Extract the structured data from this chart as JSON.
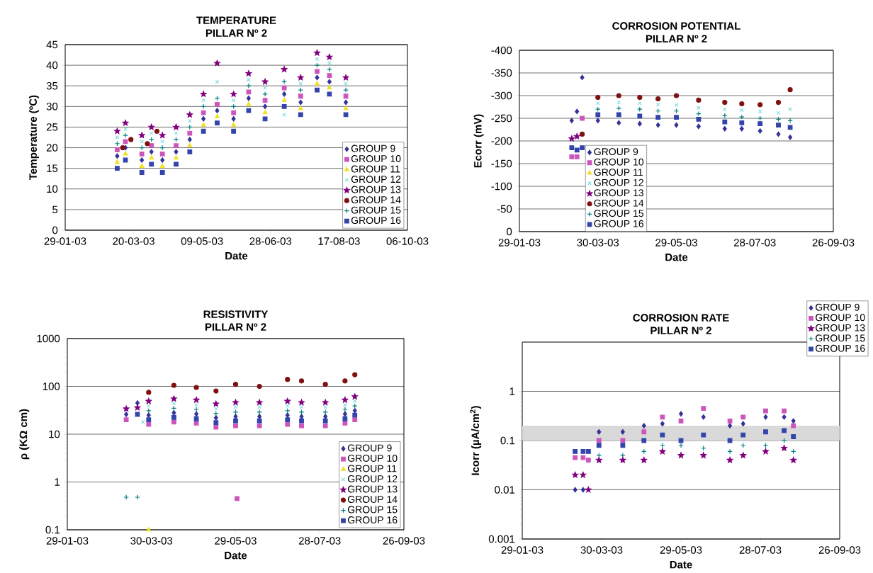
{
  "chart_data": [
    {
      "type": "scatter",
      "title": "TEMPERATURE",
      "subtitle": "PILLAR Nº 2",
      "xlabel": "Date",
      "ylabel": "Temperature (ºC)",
      "grid": "y",
      "legend": "bottom right",
      "xlim": [
        "2003-01-29",
        "2003-10-06"
      ],
      "xticks": [
        {
          "value": "2003-01-29",
          "label": "29-01-03"
        },
        {
          "value": "2003-03-20",
          "label": "20-03-03"
        },
        {
          "value": "2003-05-09",
          "label": "09-05-03"
        },
        {
          "value": "2003-06-28",
          "label": "28-06-03"
        },
        {
          "value": "2003-08-17",
          "label": "17-08-03"
        },
        {
          "value": "2003-10-06",
          "label": "06-10-03"
        }
      ],
      "ylim": [
        0,
        45
      ],
      "yticks": [
        0,
        5,
        10,
        15,
        20,
        25,
        30,
        35,
        40,
        45
      ],
      "x": [
        "2003-03-08",
        "2003-03-14",
        "2003-03-26",
        "2003-04-02",
        "2003-04-10",
        "2003-04-20",
        "2003-04-30",
        "2003-05-10",
        "2003-05-20",
        "2003-06-01",
        "2003-06-12",
        "2003-06-24",
        "2003-07-08",
        "2003-07-20",
        "2003-08-01",
        "2003-08-10",
        "2003-08-22"
      ],
      "series": [
        {
          "name": "GROUP 9",
          "color": "#333399",
          "marker": "diamond",
          "values": [
            18,
            20,
            17,
            19,
            17,
            19,
            22,
            27,
            29,
            27,
            32,
            30,
            33,
            31,
            37,
            36,
            31
          ]
        },
        {
          "name": "GROUP 10",
          "color": "#cc55bb",
          "marker": "square",
          "values": [
            19.5,
            21.5,
            18.5,
            20.5,
            18.5,
            20.5,
            23.5,
            28.5,
            30.5,
            28.5,
            33.5,
            31.5,
            34.5,
            32.5,
            38.5,
            37.5,
            32.5
          ]
        },
        {
          "name": "GROUP 11",
          "color": "#f0e020",
          "marker": "triangle",
          "values": [
            16.5,
            18.5,
            15.5,
            17.5,
            15.5,
            17.5,
            20.5,
            25.5,
            27.5,
            25.5,
            30.5,
            28.5,
            31.5,
            29.5,
            35.5,
            34.5,
            29.5
          ]
        },
        {
          "name": "GROUP 12",
          "color": "#88dddd",
          "marker": "cross",
          "values": [
            22.5,
            24.5,
            21.5,
            23.5,
            21.5,
            23.5,
            26.5,
            31.5,
            36,
            31.5,
            36.5,
            34.5,
            28,
            35.5,
            41.5,
            40.5,
            35.5
          ]
        },
        {
          "name": "GROUP 13",
          "color": "#800080",
          "marker": "star",
          "values": [
            24,
            26,
            23,
            25,
            23,
            25,
            28,
            33,
            40.5,
            33,
            38,
            36,
            39,
            37,
            43,
            42,
            37
          ]
        },
        {
          "name": "GROUP 14",
          "color": "#801010",
          "marker": "circle",
          "x": [
            "2003-03-12",
            "2003-03-18",
            "2003-03-30",
            "2003-04-06"
          ],
          "values": [
            20,
            22,
            21,
            24
          ]
        },
        {
          "name": "GROUP 15",
          "color": "#008080",
          "marker": "plus",
          "values": [
            21,
            23,
            20,
            22,
            20,
            22,
            25,
            30,
            32,
            30,
            35,
            33,
            36,
            34,
            40,
            39,
            34
          ]
        },
        {
          "name": "GROUP 16",
          "color": "#3344aa",
          "marker": "square",
          "values": [
            15,
            17,
            14,
            16,
            14,
            16,
            19,
            24,
            26,
            24,
            29,
            27,
            30,
            28,
            34,
            33,
            28
          ]
        }
      ]
    },
    {
      "type": "scatter",
      "title": "CORROSION POTENTIAL",
      "subtitle": "PILLAR Nº 2",
      "xlabel": "Date",
      "ylabel": "Ecorr (mV)",
      "grid": "y",
      "legend": "bottom left",
      "xlim": [
        "2003-01-29",
        "2003-09-26"
      ],
      "xticks": [
        {
          "value": "2003-01-29",
          "label": "29-01-03"
        },
        {
          "value": "2003-03-30",
          "label": "30-03-03"
        },
        {
          "value": "2003-05-29",
          "label": "29-05-03"
        },
        {
          "value": "2003-07-28",
          "label": "28-07-03"
        },
        {
          "value": "2003-09-26",
          "label": "26-09-03"
        }
      ],
      "ylim": [
        0,
        -400
      ],
      "yticks": [
        0,
        -50,
        -100,
        -150,
        -200,
        -250,
        -300,
        -350,
        -400
      ],
      "x": [
        "2003-03-10",
        "2003-03-14",
        "2003-03-18",
        "2003-03-30",
        "2003-04-15",
        "2003-05-01",
        "2003-05-15",
        "2003-05-29",
        "2003-06-15",
        "2003-07-05",
        "2003-07-18",
        "2003-08-01",
        "2003-08-15",
        "2003-08-24"
      ],
      "series": [
        {
          "name": "GROUP 9",
          "color": "#333399",
          "marker": "diamond",
          "values": [
            -245,
            -265,
            -340,
            -245,
            -240,
            -238,
            -235,
            -235,
            -232,
            -227,
            -227,
            -222,
            -215,
            -208
          ]
        },
        {
          "name": "GROUP 10",
          "color": "#cc55bb",
          "marker": "square",
          "values": [
            -165,
            -165,
            -250,
            null,
            null,
            null,
            null,
            null,
            null,
            null,
            null,
            null,
            null,
            null
          ]
        },
        {
          "name": "GROUP 11",
          "color": "#f0e020",
          "marker": "triangle",
          "values": [
            null,
            null,
            null,
            null,
            null,
            null,
            null,
            null,
            null,
            null,
            null,
            null,
            null,
            null
          ]
        },
        {
          "name": "GROUP 12",
          "color": "#88dddd",
          "marker": "cross",
          "values": [
            null,
            null,
            null,
            -283,
            -285,
            -283,
            -280,
            -279,
            -273,
            -270,
            -268,
            -265,
            -262,
            -270
          ]
        },
        {
          "name": "GROUP 13",
          "color": "#800080",
          "marker": "star",
          "values": [
            -205,
            -210,
            null,
            null,
            null,
            null,
            null,
            null,
            null,
            null,
            null,
            null,
            null,
            null
          ]
        },
        {
          "name": "GROUP 14",
          "color": "#801010",
          "marker": "circle",
          "values": [
            null,
            null,
            -215,
            -296,
            -300,
            -296,
            -293,
            -300,
            -290,
            -285,
            -282,
            -280,
            -285,
            -313
          ]
        },
        {
          "name": "GROUP 15",
          "color": "#008080",
          "marker": "plus",
          "values": [
            null,
            null,
            null,
            -270,
            -272,
            -270,
            -266,
            -266,
            -260,
            -256,
            -253,
            -250,
            -248,
            -245
          ]
        },
        {
          "name": "GROUP 16",
          "color": "#3344aa",
          "marker": "square",
          "values": [
            -185,
            -180,
            -185,
            -258,
            -258,
            -255,
            -252,
            -252,
            -248,
            -242,
            -240,
            -238,
            -235,
            -230
          ]
        }
      ]
    },
    {
      "type": "scatter",
      "title": "RESISTIVITY",
      "subtitle": "PILLAR Nº 2",
      "xlabel": "Date",
      "ylabel": "ρ (KΩ cm)",
      "grid": "y",
      "legend": "bottom right",
      "log": "y",
      "xlim": [
        "2003-01-29",
        "2003-09-26"
      ],
      "xticks": [
        {
          "value": "2003-01-29",
          "label": "29-01-03"
        },
        {
          "value": "2003-03-30",
          "label": "30-03-03"
        },
        {
          "value": "2003-05-29",
          "label": "29-05-03"
        },
        {
          "value": "2003-07-28",
          "label": "28-07-03"
        },
        {
          "value": "2003-09-26",
          "label": "26-09-03"
        }
      ],
      "ylim": [
        0.1,
        1000
      ],
      "yticks": [
        0.1,
        1,
        10,
        100,
        1000
      ],
      "x": [
        "2003-03-12",
        "2003-03-20",
        "2003-03-24",
        "2003-03-28",
        "2003-04-15",
        "2003-05-01",
        "2003-05-15",
        "2003-05-29",
        "2003-05-30",
        "2003-06-15",
        "2003-07-05",
        "2003-07-15",
        "2003-08-01",
        "2003-08-15",
        "2003-08-22"
      ],
      "series": [
        {
          "name": "GROUP 9",
          "color": "#333399",
          "marker": "diamond",
          "values": [
            26,
            45,
            null,
            25,
            28,
            26.5,
            22,
            23.5,
            null,
            23.5,
            25,
            23.5,
            23.5,
            26.5,
            31
          ]
        },
        {
          "name": "GROUP 10",
          "color": "#cc55bb",
          "marker": "square",
          "values": [
            20,
            null,
            null,
            16,
            18,
            17,
            14,
            15,
            0.45,
            15,
            16,
            15,
            15,
            17,
            20
          ]
        },
        {
          "name": "GROUP 11",
          "color": "#f0e020",
          "marker": "triangle",
          "values": [
            null,
            null,
            null,
            0.1,
            null,
            null,
            null,
            null,
            null,
            null,
            null,
            null,
            null,
            null,
            null
          ]
        },
        {
          "name": "GROUP 12",
          "color": "#88dddd",
          "marker": "cross",
          "values": [
            null,
            null,
            18,
            39,
            44,
            41,
            34,
            37,
            null,
            37,
            39,
            37,
            37,
            41,
            49
          ]
        },
        {
          "name": "GROUP 13",
          "color": "#800080",
          "marker": "star",
          "values": [
            34,
            36,
            null,
            49,
            55,
            52,
            43,
            46,
            null,
            46,
            49,
            46,
            46,
            52,
            61
          ]
        },
        {
          "name": "GROUP 14",
          "color": "#801010",
          "marker": "circle",
          "values": [
            null,
            null,
            null,
            75,
            105,
            95,
            80,
            110,
            null,
            100,
            140,
            130,
            110,
            130,
            175
          ]
        },
        {
          "name": "GROUP 15",
          "color": "#008080",
          "marker": "plus",
          "values": [
            0.48,
            0.48,
            null,
            31,
            35,
            33,
            27,
            29,
            null,
            29,
            31,
            29,
            29,
            33,
            39
          ]
        },
        {
          "name": "GROUP 16",
          "color": "#3344aa",
          "marker": "square",
          "values": [
            null,
            26,
            null,
            20,
            22.5,
            21,
            17.5,
            19,
            null,
            19,
            20,
            19,
            19,
            21,
            25
          ]
        }
      ]
    },
    {
      "type": "scatter",
      "title": "CORROSION RATE",
      "subtitle": "PILLAR Nº 2",
      "xlabel": "Date",
      "ylabel": "Icorr (µA/cm$^{2}$)",
      "grid": "y",
      "legend": "top right",
      "log": "y",
      "xlim": [
        "2003-01-29",
        "2003-09-26"
      ],
      "xticks": [
        {
          "value": "2003-01-29",
          "label": "29-01-03"
        },
        {
          "value": "2003-03-30",
          "label": "30-03-03"
        },
        {
          "value": "2003-05-29",
          "label": "29-05-03"
        },
        {
          "value": "2003-07-28",
          "label": "28-07-03"
        },
        {
          "value": "2003-09-26",
          "label": "26-09-03"
        }
      ],
      "ylim": [
        0.001,
        10
      ],
      "yticks": [
        0.001,
        0.01,
        0.1,
        1
      ],
      "bands": [
        {
          "axis": "y",
          "from": 0.1,
          "to": 0.2,
          "color": "#d9d9d9"
        }
      ],
      "x": [
        "2003-03-10",
        "2003-03-16",
        "2003-03-20",
        "2003-03-28",
        "2003-04-15",
        "2003-05-01",
        "2003-05-15",
        "2003-05-29",
        "2003-06-15",
        "2003-07-05",
        "2003-07-15",
        "2003-08-01",
        "2003-08-15",
        "2003-08-22"
      ],
      "series": [
        {
          "name": "GROUP 9",
          "color": "#333399",
          "marker": "diamond",
          "values": [
            0.01,
            0.01,
            null,
            0.15,
            0.15,
            0.2,
            0.22,
            0.35,
            0.3,
            0.2,
            0.22,
            0.3,
            0.3,
            0.25
          ]
        },
        {
          "name": "GROUP 10",
          "color": "#cc55bb",
          "marker": "square",
          "values": [
            0.045,
            0.045,
            0.04,
            0.1,
            0.1,
            0.15,
            0.3,
            0.25,
            0.45,
            0.25,
            0.3,
            0.4,
            0.4,
            0.2
          ]
        },
        {
          "name": "GROUP 13",
          "color": "#800080",
          "marker": "star",
          "values": [
            0.02,
            0.02,
            0.01,
            0.04,
            0.04,
            0.04,
            0.06,
            0.05,
            0.05,
            0.04,
            0.05,
            0.06,
            0.07,
            0.04
          ]
        },
        {
          "name": "GROUP 15",
          "color": "#008080",
          "marker": "plus",
          "values": [
            null,
            null,
            null,
            0.05,
            0.05,
            0.06,
            0.08,
            0.08,
            0.07,
            0.06,
            0.08,
            0.08,
            0.1,
            0.06
          ]
        },
        {
          "name": "GROUP 16",
          "color": "#3344aa",
          "marker": "square",
          "values": [
            0.06,
            0.06,
            0.06,
            0.08,
            0.08,
            0.1,
            0.13,
            0.1,
            0.13,
            0.1,
            0.13,
            0.15,
            0.16,
            0.12
          ]
        }
      ]
    }
  ]
}
